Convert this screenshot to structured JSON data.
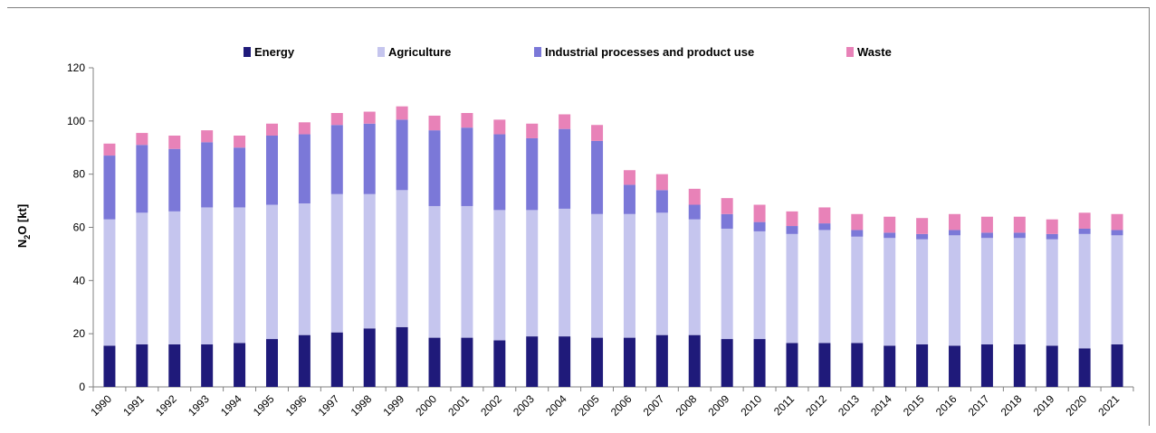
{
  "chart_data": {
    "type": "bar",
    "stacked": true,
    "title": "",
    "xlabel": "",
    "ylabel": "N2O [kt]",
    "ylabel_main": "N",
    "ylabel_sub": "2",
    "ylabel_rest": "O [kt]",
    "ylim": [
      0,
      120
    ],
    "yticks": [
      0,
      20,
      40,
      60,
      80,
      100,
      120
    ],
    "grid": false,
    "legend_position": "top",
    "categories": [
      "1990",
      "1991",
      "1992",
      "1993",
      "1994",
      "1995",
      "1996",
      "1997",
      "1998",
      "1999",
      "2000",
      "2001",
      "2002",
      "2003",
      "2004",
      "2005",
      "2006",
      "2007",
      "2008",
      "2009",
      "2010",
      "2011",
      "2012",
      "2013",
      "2014",
      "2015",
      "2016",
      "2017",
      "2018",
      "2019",
      "2020",
      "2021"
    ],
    "series": [
      {
        "name": "Energy",
        "color": "#1f1a7a",
        "values": [
          15.5,
          16,
          16,
          16,
          16.5,
          18,
          19.5,
          20.5,
          22,
          22.5,
          18.5,
          18.5,
          17.5,
          19,
          19,
          18.5,
          18.5,
          19.5,
          19.5,
          18,
          18,
          16.5,
          16.5,
          16.5,
          15.5,
          16,
          15.5,
          16,
          16,
          15.5,
          14.5,
          16
        ]
      },
      {
        "name": "Agriculture",
        "color": "#c5c5ee",
        "values": [
          47.5,
          49.5,
          50,
          51.5,
          51,
          50.5,
          49.5,
          52,
          50.5,
          51.5,
          49.5,
          49.5,
          49,
          47.5,
          48,
          46.5,
          46.5,
          46,
          43.5,
          41.5,
          40.5,
          41,
          42.5,
          40,
          40.5,
          39.5,
          41.5,
          40,
          40,
          40,
          43,
          41
        ]
      },
      {
        "name": "Industrial processes and product use",
        "color": "#7b78d8",
        "values": [
          24,
          25.5,
          23.5,
          24.5,
          22.5,
          26,
          26,
          26,
          26.5,
          26.5,
          28.5,
          29.5,
          28.5,
          27,
          30,
          27.5,
          11,
          8.5,
          5.5,
          5.5,
          3.5,
          3,
          2.5,
          2.5,
          2,
          2,
          2,
          2,
          2,
          2,
          2,
          2
        ]
      },
      {
        "name": "Waste",
        "color": "#e882b8",
        "values": [
          4.5,
          4.5,
          5,
          4.5,
          4.5,
          4.5,
          4.5,
          4.5,
          4.5,
          5,
          5.5,
          5.5,
          5.5,
          5.5,
          5.5,
          6,
          5.5,
          6,
          6,
          6,
          6.5,
          5.5,
          6,
          6,
          6,
          6,
          6,
          6,
          6,
          5.5,
          6,
          6
        ]
      }
    ]
  }
}
